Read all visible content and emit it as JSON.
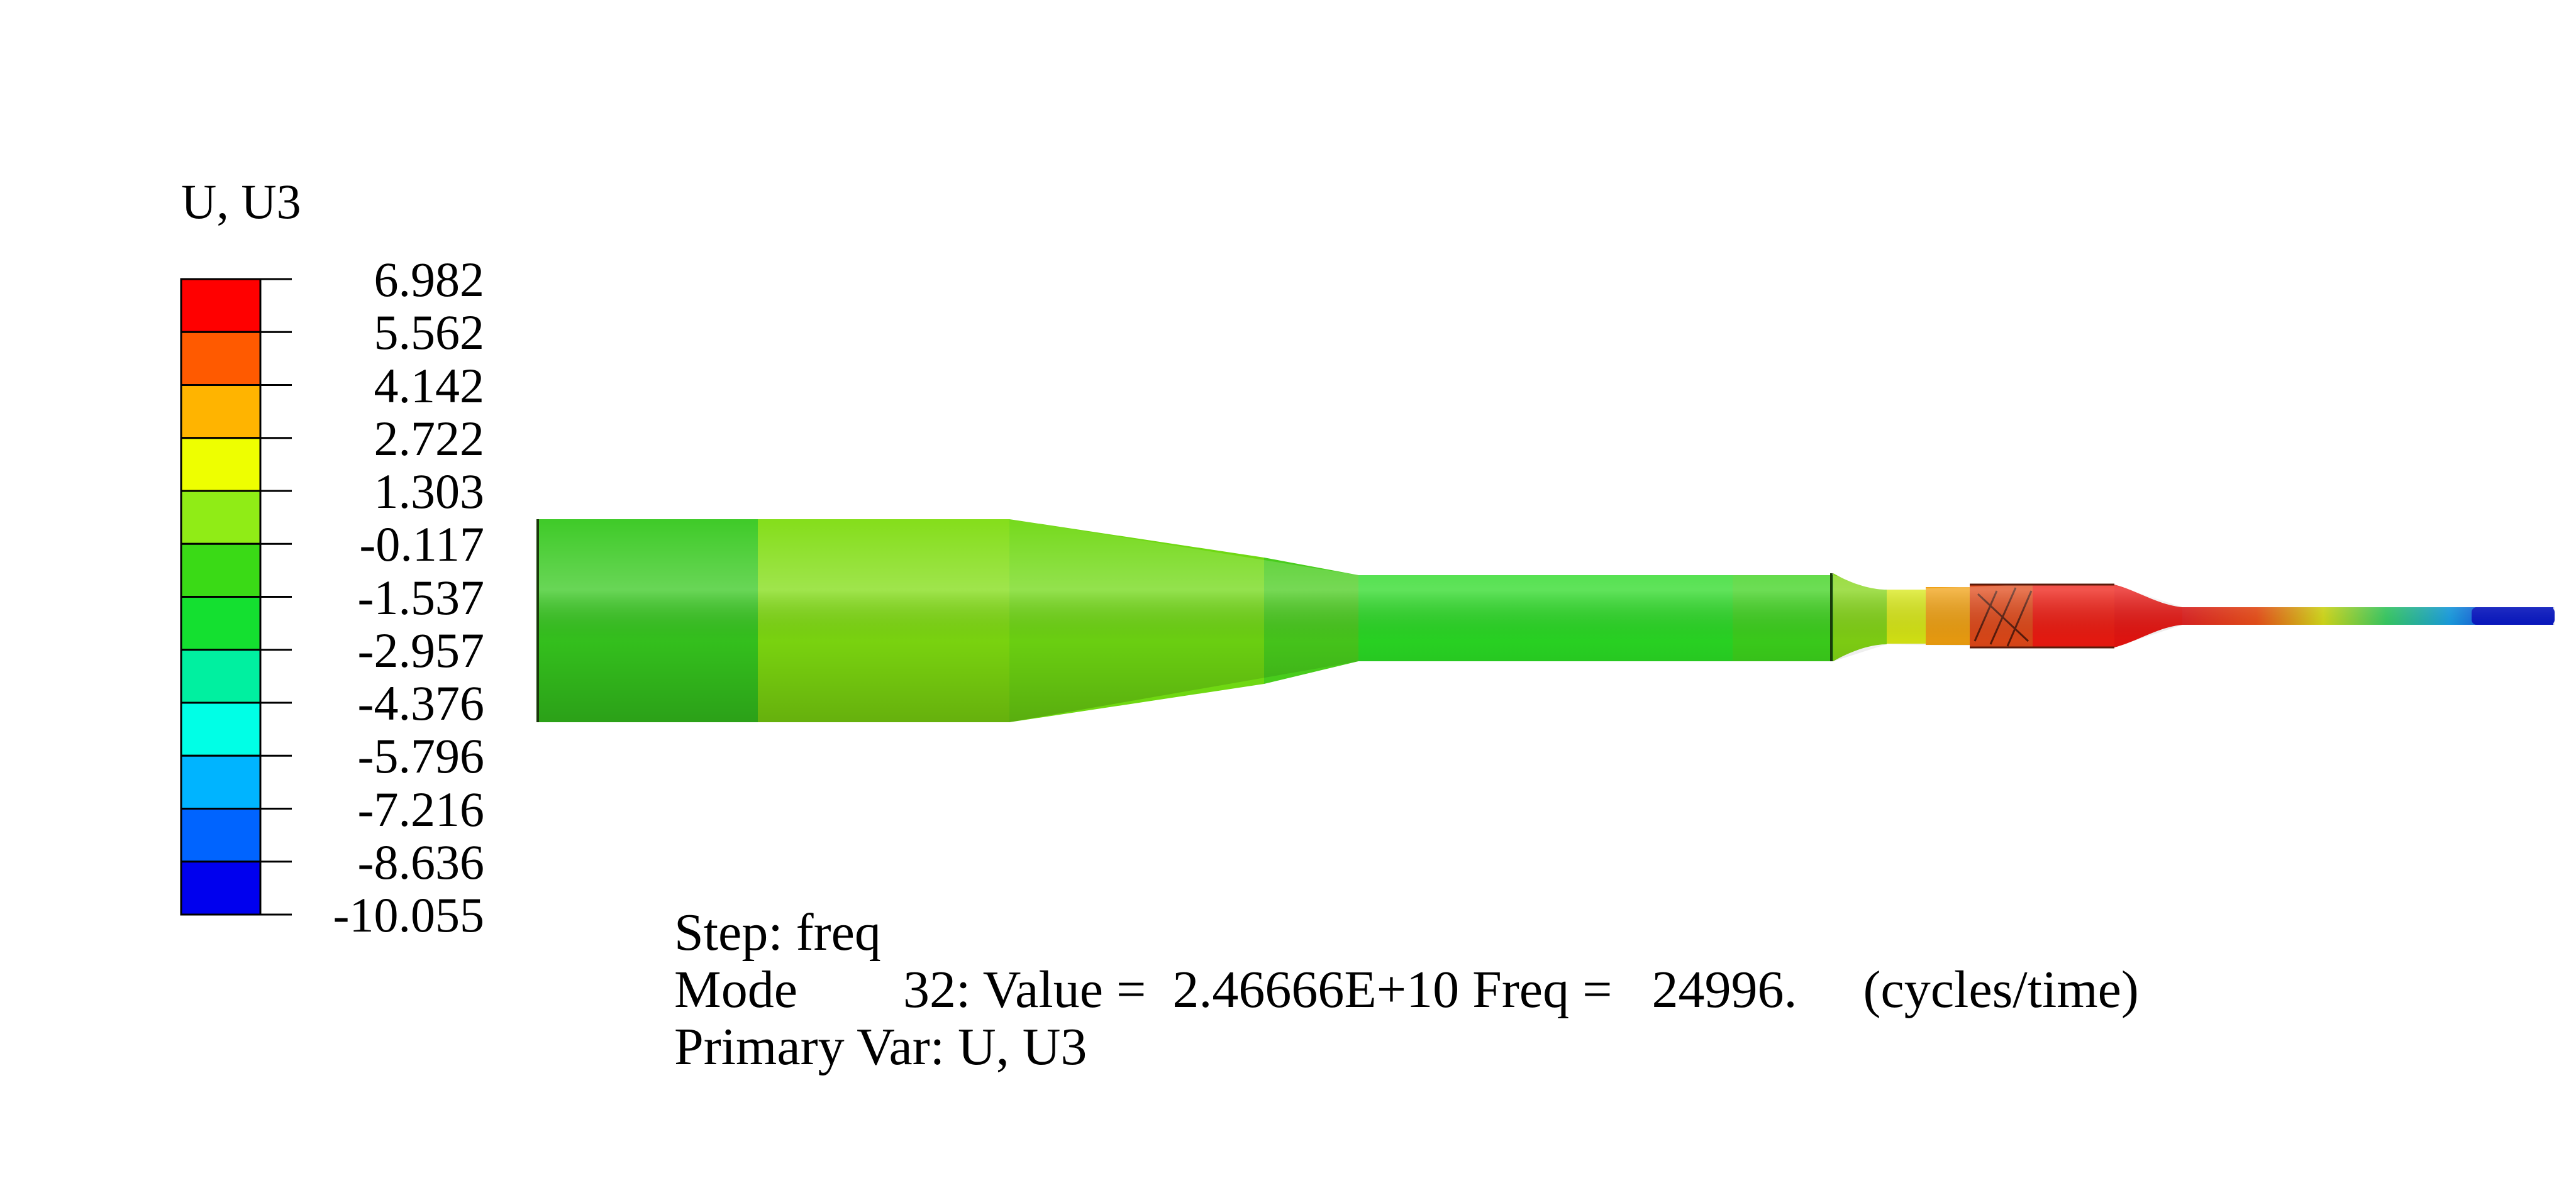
{
  "legend": {
    "title": "U, U3",
    "values": [
      "6.982",
      "5.562",
      "4.142",
      "2.722",
      "1.303",
      "-0.117",
      "-1.537",
      "-2.957",
      "-4.376",
      "-5.796",
      "-7.216",
      "-8.636",
      "-10.055"
    ],
    "colors": [
      "#ff0000",
      "#ff5a00",
      "#ffb400",
      "#eeff00",
      "#90ec16",
      "#3ada16",
      "#14e030",
      "#00f0a0",
      "#00ffe6",
      "#00b4ff",
      "#0064ff",
      "#0000ee"
    ]
  },
  "info": {
    "step": "Step: freq",
    "mode": "Mode        32: Value =  2.46666E+10 Freq =   24996.     (cycles/time)",
    "primary_var": "Primary Var: U, U3"
  }
}
